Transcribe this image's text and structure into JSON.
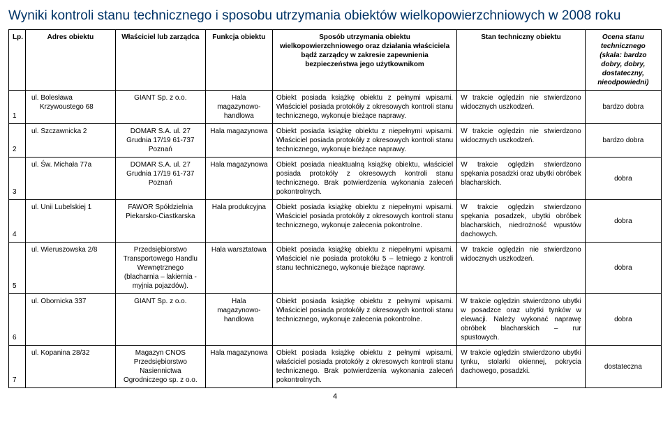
{
  "title": "Wyniki kontroli stanu technicznego i sposobu utrzymania obiektów wielkopowierzchniowych w 2008 roku",
  "headers": {
    "lp": "Lp.",
    "addr": "Adres obiektu",
    "own": "Właściciel lub zarządca",
    "func": "Funkcja obiektu",
    "maint": "Sposób utrzymania obiektu wielkopowierzchniowego oraz działania właściciela bądź zarządcy w zakresie zapewnienia bezpieczeństwa jego użytkownikom",
    "state": "Stan techniczny obiektu",
    "eval": "Ocena stanu technicznego (skala: bardzo dobry, dobry, dostateczny, nieodpowiedni)"
  },
  "rows": [
    {
      "lp": "1",
      "addr": "ul. Bolesława Krzywoustego 68",
      "own": "GIANT Sp. z o.o.",
      "func": "Hala magazynowo-handlowa",
      "maint": "Obiekt posiada książkę obiektu z pełnymi wpisami. Właściciel posiada protokóły z okresowych kontroli stanu technicznego, wykonuje bieżące naprawy.",
      "state": "W trakcie oględzin nie stwierdzono widocznych uszkodzeń.",
      "eval": "bardzo dobra"
    },
    {
      "lp": "2",
      "addr": "ul. Szczawnicka 2",
      "own": "DOMAR S.A. ul. 27 Grudnia 17/19 61-737 Poznań",
      "func": "Hala magazynowa",
      "maint": "Obiekt posiada książkę obiektu z niepełnymi wpisami. Właściciel posiada protokóły z okresowych kontroli stanu technicznego, wykonuje bieżące naprawy.",
      "state": "W trakcie oględzin nie stwierdzono widocznych uszkodzeń.",
      "eval": "bardzo dobra"
    },
    {
      "lp": "3",
      "addr": "ul. Św. Michała 77a",
      "own": "DOMAR S.A. ul. 27 Grudnia 17/19 61-737 Poznań",
      "func": "Hala magazynowa",
      "maint": "Obiekt posiada nieaktualną książkę obiektu, właściciel posiada protokóły z okresowych kontroli stanu technicznego. Brak potwierdzenia wykonania zaleceń pokontrolnych.",
      "state": "W trakcie oględzin stwierdzono spękania posadzki oraz ubytki obróbek blacharskich.",
      "eval": "dobra"
    },
    {
      "lp": "4",
      "addr": "ul. Unii Lubelskiej 1",
      "own": "FAWOR Spółdzielnia Piekarsko-Ciastkarska",
      "func": "Hala produkcyjna",
      "maint": "Obiekt posiada książkę obiektu z niepełnymi wpisami. Właściciel posiada protokóły z okresowych kontroli stanu technicznego, wykonuje zalecenia pokontrolne.",
      "state": "W trakcie oględzin stwierdzono spękania posadzek, ubytki obróbek blacharskich, niedrożność wpustów dachowych.",
      "eval": "dobra"
    },
    {
      "lp": "5",
      "addr": "ul. Wieruszowska 2/8",
      "own": "Przedsiębiorstwo Transportowego Handlu Wewnętrznego (blacharnia – lakiernia - myjnia pojazdów).",
      "func": "Hala warsztatowa",
      "maint": "Obiekt posiada książkę obiektu z niepełnymi wpisami. Właściciel nie posiada protokółu 5 – letniego z kontroli stanu technicznego, wykonuje bieżące naprawy.",
      "state": "W trakcie oględzin nie stwierdzono widocznych uszkodzeń.",
      "eval": "dobra"
    },
    {
      "lp": "6",
      "addr": "ul. Obornicka 337",
      "own": "GIANT Sp. z o.o.",
      "func": "Hala magazynowo-handlowa",
      "maint": "Obiekt posiada książkę obiektu z pełnymi wpisami. Właściciel posiada protokóły z okresowych kontroli stanu technicznego, wykonuje zalecenia pokontrolne.",
      "state": "W trakcie oględzin stwierdzono ubytki w posadzce oraz ubytki tynków w elewacji. Należy wykonać naprawę obróbek blacharskich – rur spustowych.",
      "eval": "dobra"
    },
    {
      "lp": "7",
      "addr": "ul. Kopanina 28/32",
      "own": "Magazyn CNOS Przedsiębiorstwo Nasiennictwa Ogrodniczego sp. z o.o.",
      "func": "Hala magazynowa",
      "maint": "Obiekt posiada książkę obiektu z pełnymi wpisami, właściciel posiada protokóły z okresowych kontroli stanu technicznego. Brak potwierdzenia wykonania zaleceń pokontrolnych.",
      "state": "W trakcie oględzin stwierdzono ubytki tynku, stolarki okiennej, pokrycia dachowego, posadzki.",
      "eval": "dostateczna"
    }
  ],
  "page_number": "4"
}
